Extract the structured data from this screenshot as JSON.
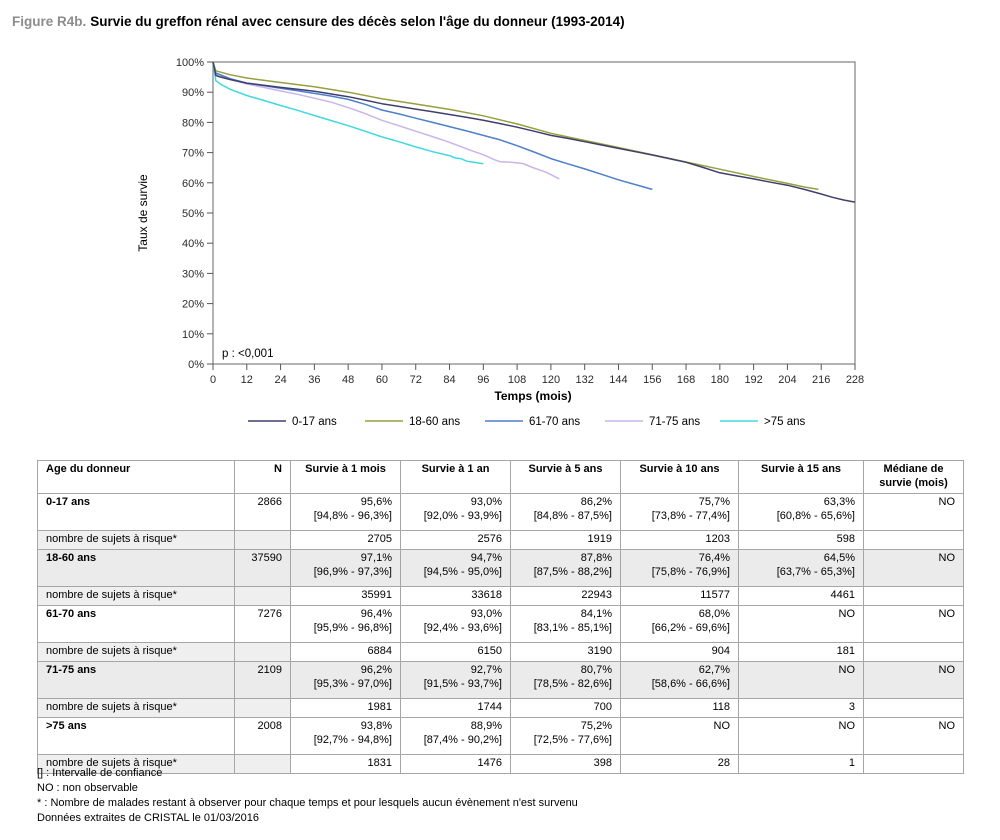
{
  "figure": {
    "label": "Figure R4b.",
    "title": "Survie du greffon rénal avec censure des décès selon l'âge du donneur (1993-2014)"
  },
  "chart_data": {
    "type": "line",
    "title": "Survie du greffon rénal avec censure des décès selon l'âge du donneur (1993-2014)",
    "xlabel": "Temps (mois)",
    "ylabel": "Taux de survie",
    "xlim": [
      0,
      228
    ],
    "ylim": [
      0,
      100
    ],
    "grid": false,
    "legend_position": "bottom",
    "annotation": "p : <0,001",
    "x_ticks": [
      0,
      12,
      24,
      36,
      48,
      60,
      72,
      84,
      96,
      108,
      120,
      132,
      144,
      156,
      168,
      180,
      192,
      204,
      216,
      228
    ],
    "y_ticks": [
      {
        "value": 100,
        "label": "100%"
      },
      {
        "value": 90,
        "label": "90%"
      },
      {
        "value": 80,
        "label": "80%"
      },
      {
        "value": 70,
        "label": "70%"
      },
      {
        "value": 60,
        "label": "60%"
      },
      {
        "value": 50,
        "label": "50%"
      },
      {
        "value": 40,
        "label": "40%"
      },
      {
        "value": 30,
        "label": "30%"
      },
      {
        "value": 20,
        "label": "20%"
      },
      {
        "value": 10,
        "label": "10%"
      },
      {
        "value": 0,
        "label": "0%"
      }
    ],
    "series": [
      {
        "name": "71-75 ans",
        "color": "#c9b5e8",
        "points": [
          [
            0,
            100
          ],
          [
            0.5,
            98
          ],
          [
            1,
            96.2
          ],
          [
            6,
            94.3
          ],
          [
            12,
            92.7
          ],
          [
            18,
            91.6
          ],
          [
            24,
            90.4
          ],
          [
            30,
            89.3
          ],
          [
            36,
            88.0
          ],
          [
            42,
            86.7
          ],
          [
            48,
            84.9
          ],
          [
            54,
            82.9
          ],
          [
            60,
            80.7
          ],
          [
            66,
            78.9
          ],
          [
            72,
            77.1
          ],
          [
            78,
            75.3
          ],
          [
            84,
            73.4
          ],
          [
            88,
            72.0
          ],
          [
            92,
            70.6
          ],
          [
            96,
            69.3
          ],
          [
            100,
            67.6
          ],
          [
            102,
            67.0
          ],
          [
            106,
            66.8
          ],
          [
            110,
            66.4
          ],
          [
            114,
            64.9
          ],
          [
            118,
            63.6
          ],
          [
            120,
            62.7
          ],
          [
            123,
            61.3
          ]
        ]
      },
      {
        "name": ">75 ans",
        "color": "#40d8e0",
        "points": [
          [
            0,
            100
          ],
          [
            0.5,
            97
          ],
          [
            1,
            93.8
          ],
          [
            3,
            92.5
          ],
          [
            6,
            91.0
          ],
          [
            12,
            88.9
          ],
          [
            18,
            87.3
          ],
          [
            24,
            85.6
          ],
          [
            30,
            84.0
          ],
          [
            36,
            82.3
          ],
          [
            42,
            80.6
          ],
          [
            48,
            78.9
          ],
          [
            54,
            77.1
          ],
          [
            60,
            75.2
          ],
          [
            66,
            73.6
          ],
          [
            72,
            71.9
          ],
          [
            78,
            70.3
          ],
          [
            82,
            69.4
          ],
          [
            84,
            69.0
          ],
          [
            86,
            68.2
          ],
          [
            88,
            68.0
          ],
          [
            90,
            67.2
          ],
          [
            92,
            66.9
          ],
          [
            96,
            66.3
          ]
        ]
      },
      {
        "name": "61-70 ans",
        "color": "#4d7fca",
        "points": [
          [
            0,
            100
          ],
          [
            0.5,
            98
          ],
          [
            1,
            96.4
          ],
          [
            6,
            94.5
          ],
          [
            12,
            93.0
          ],
          [
            18,
            92.2
          ],
          [
            24,
            91.3
          ],
          [
            30,
            90.5
          ],
          [
            36,
            89.6
          ],
          [
            42,
            88.7
          ],
          [
            48,
            87.6
          ],
          [
            54,
            86.0
          ],
          [
            60,
            84.1
          ],
          [
            66,
            82.8
          ],
          [
            72,
            81.4
          ],
          [
            78,
            80.0
          ],
          [
            84,
            78.6
          ],
          [
            90,
            77.2
          ],
          [
            96,
            75.7
          ],
          [
            102,
            74.2
          ],
          [
            108,
            72.3
          ],
          [
            114,
            70.2
          ],
          [
            120,
            68.0
          ],
          [
            126,
            66.3
          ],
          [
            132,
            64.6
          ],
          [
            138,
            62.8
          ],
          [
            144,
            61.0
          ],
          [
            150,
            59.4
          ],
          [
            156,
            57.8
          ]
        ]
      },
      {
        "name": "18-60 ans",
        "color": "#95a03e",
        "points": [
          [
            0,
            100
          ],
          [
            0.5,
            98.5
          ],
          [
            1,
            97.1
          ],
          [
            6,
            95.8
          ],
          [
            12,
            94.7
          ],
          [
            24,
            93.2
          ],
          [
            36,
            91.8
          ],
          [
            48,
            90.0
          ],
          [
            60,
            87.8
          ],
          [
            72,
            86.1
          ],
          [
            84,
            84.3
          ],
          [
            96,
            82.2
          ],
          [
            108,
            79.5
          ],
          [
            120,
            76.4
          ],
          [
            132,
            74.0
          ],
          [
            144,
            71.7
          ],
          [
            156,
            69.3
          ],
          [
            168,
            66.9
          ],
          [
            180,
            64.5
          ],
          [
            192,
            62.1
          ],
          [
            204,
            59.8
          ],
          [
            210,
            58.6
          ],
          [
            215,
            57.8
          ]
        ]
      },
      {
        "name": "0-17 ans",
        "color": "#3f3f6e",
        "points": [
          [
            0,
            100
          ],
          [
            0.5,
            98
          ],
          [
            1,
            95.6
          ],
          [
            2,
            95.2
          ],
          [
            6,
            94.2
          ],
          [
            12,
            93.0
          ],
          [
            18,
            92.3
          ],
          [
            24,
            91.6
          ],
          [
            30,
            91.0
          ],
          [
            36,
            90.3
          ],
          [
            42,
            89.4
          ],
          [
            48,
            88.5
          ],
          [
            54,
            87.4
          ],
          [
            60,
            86.2
          ],
          [
            66,
            85.3
          ],
          [
            72,
            84.4
          ],
          [
            78,
            83.5
          ],
          [
            84,
            82.6
          ],
          [
            90,
            81.7
          ],
          [
            96,
            80.7
          ],
          [
            102,
            79.6
          ],
          [
            108,
            78.4
          ],
          [
            114,
            77.1
          ],
          [
            120,
            75.7
          ],
          [
            126,
            74.7
          ],
          [
            132,
            73.6
          ],
          [
            138,
            72.5
          ],
          [
            144,
            71.4
          ],
          [
            150,
            70.3
          ],
          [
            156,
            69.2
          ],
          [
            162,
            68.0
          ],
          [
            168,
            66.8
          ],
          [
            174,
            65.1
          ],
          [
            180,
            63.3
          ],
          [
            186,
            62.3
          ],
          [
            192,
            61.3
          ],
          [
            198,
            60.2
          ],
          [
            204,
            59.2
          ],
          [
            210,
            57.8
          ],
          [
            216,
            56.3
          ],
          [
            220,
            55.2
          ],
          [
            224,
            54.3
          ],
          [
            228,
            53.6
          ]
        ]
      }
    ],
    "legend_order": [
      "0-17 ans",
      "18-60 ans",
      "61-70 ans",
      "71-75 ans",
      ">75 ans"
    ]
  },
  "table": {
    "headers": [
      "Age du donneur",
      "N",
      "Survie à 1 mois",
      "Survie à 1 an",
      "Survie à 5 ans",
      "Survie à 10 ans",
      "Survie à 15 ans",
      "Médiane de survie (mois)"
    ],
    "risk_label": "nombre de sujets à risque*",
    "groups": [
      {
        "age": "0-17 ans",
        "n": "2866",
        "shaded": false,
        "median": "NO",
        "cells": [
          [
            "95,6%",
            "[94,8% - 96,3%]"
          ],
          [
            "93,0%",
            "[92,0% - 93,9%]"
          ],
          [
            "86,2%",
            "[84,8% - 87,5%]"
          ],
          [
            "75,7%",
            "[73,8% - 77,4%]"
          ],
          [
            "63,3%",
            "[60,8% - 65,6%]"
          ]
        ],
        "risk": [
          "2705",
          "2576",
          "1919",
          "1203",
          "598"
        ]
      },
      {
        "age": "18-60 ans",
        "n": "37590",
        "shaded": true,
        "median": "NO",
        "cells": [
          [
            "97,1%",
            "[96,9% - 97,3%]"
          ],
          [
            "94,7%",
            "[94,5% - 95,0%]"
          ],
          [
            "87,8%",
            "[87,5% - 88,2%]"
          ],
          [
            "76,4%",
            "[75,8% - 76,9%]"
          ],
          [
            "64,5%",
            "[63,7% - 65,3%]"
          ]
        ],
        "risk": [
          "35991",
          "33618",
          "22943",
          "11577",
          "4461"
        ]
      },
      {
        "age": "61-70 ans",
        "n": "7276",
        "shaded": false,
        "median": "NO",
        "cells": [
          [
            "96,4%",
            "[95,9% - 96,8%]"
          ],
          [
            "93,0%",
            "[92,4% - 93,6%]"
          ],
          [
            "84,1%",
            "[83,1% - 85,1%]"
          ],
          [
            "68,0%",
            "[66,2% - 69,6%]"
          ],
          [
            "NO",
            ""
          ]
        ],
        "risk": [
          "6884",
          "6150",
          "3190",
          "904",
          "181"
        ]
      },
      {
        "age": "71-75 ans",
        "n": "2109",
        "shaded": true,
        "median": "NO",
        "cells": [
          [
            "96,2%",
            "[95,3% - 97,0%]"
          ],
          [
            "92,7%",
            "[91,5% - 93,7%]"
          ],
          [
            "80,7%",
            "[78,5% - 82,6%]"
          ],
          [
            "62,7%",
            "[58,6% - 66,6%]"
          ],
          [
            "NO",
            ""
          ]
        ],
        "risk": [
          "1981",
          "1744",
          "700",
          "118",
          "3"
        ]
      },
      {
        "age": ">75 ans",
        "n": "2008",
        "shaded": false,
        "median": "NO",
        "cells": [
          [
            "93,8%",
            "[92,7% - 94,8%]"
          ],
          [
            "88,9%",
            "[87,4% - 90,2%]"
          ],
          [
            "75,2%",
            "[72,5% - 77,6%]"
          ],
          [
            "NO",
            ""
          ],
          [
            "NO",
            ""
          ]
        ],
        "risk": [
          "1831",
          "1476",
          "398",
          "28",
          "1"
        ]
      }
    ]
  },
  "footnotes": [
    "[] : Intervalle de confiance",
    "NO : non observable",
    "* : Nombre de malades restant à observer pour chaque temps et pour lesquels aucun évènement n'est survenu",
    "Données extraites de CRISTAL le 01/03/2016"
  ]
}
